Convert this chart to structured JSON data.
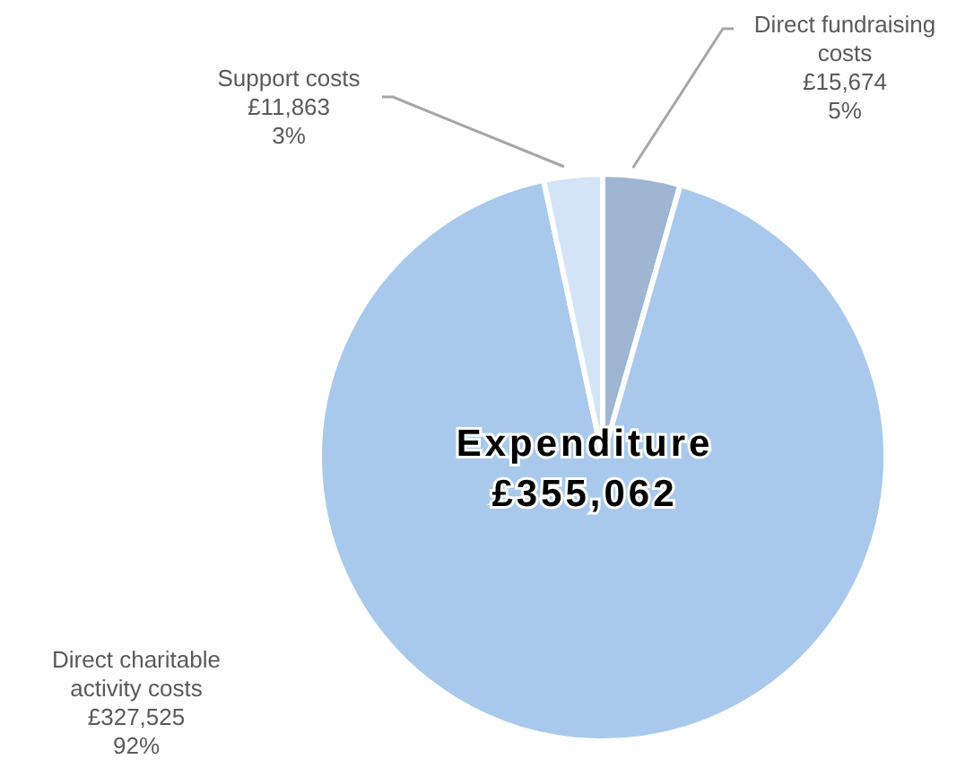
{
  "chart_data": {
    "type": "pie",
    "title": "Expenditure",
    "subtitle": "£355,062",
    "categories": [
      "Direct fundraising costs",
      "Direct charitable activity costs",
      "Support costs"
    ],
    "values": [
      15674,
      327525,
      11863
    ],
    "value_labels": [
      "£15,674\n5%",
      "£327,525\n92%",
      "£11,863\n3%"
    ],
    "colors": [
      "#9fb6d2",
      "#a9c9ec",
      "#d3e4f6"
    ]
  }
}
